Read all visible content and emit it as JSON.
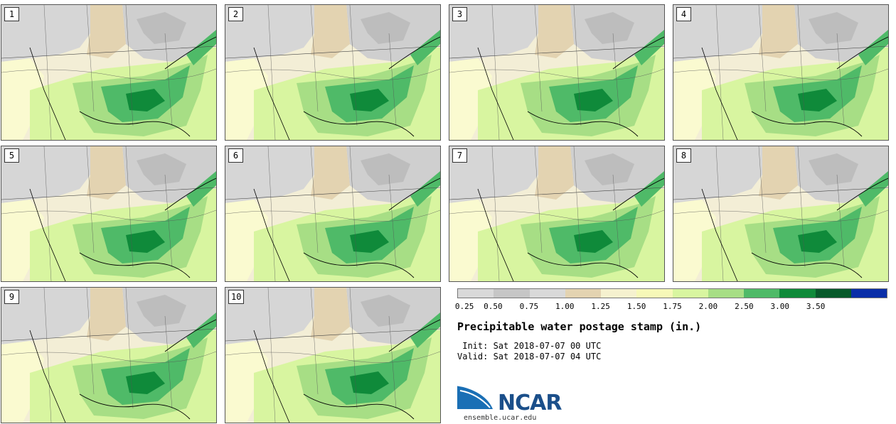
{
  "panels": [
    "1",
    "2",
    "3",
    "4",
    "5",
    "6",
    "7",
    "8",
    "9",
    "10"
  ],
  "colorbar": {
    "colors": [
      "#d9d9d9",
      "#c6c6c6",
      "#d9d9d9",
      "#e3d3b1",
      "#f5f1cf",
      "#f6f8b8",
      "#d8f5a0",
      "#a7de85",
      "#4fba68",
      "#0f8a3a",
      "#07592a",
      "#0a2ea8"
    ],
    "tick_labels": [
      "0.25",
      "0.50",
      "0.75",
      "1.00",
      "1.25",
      "1.50",
      "1.75",
      "2.00",
      "2.50",
      "3.00",
      "3.50"
    ]
  },
  "title": "Precipitable water postage stamp (in.)",
  "init": " Init: Sat 2018-07-07 00 UTC",
  "valid": "Valid: Sat 2018-07-07 04 UTC",
  "logo": {
    "text": "NCAR",
    "url": "ensemble.ucar.edu"
  }
}
